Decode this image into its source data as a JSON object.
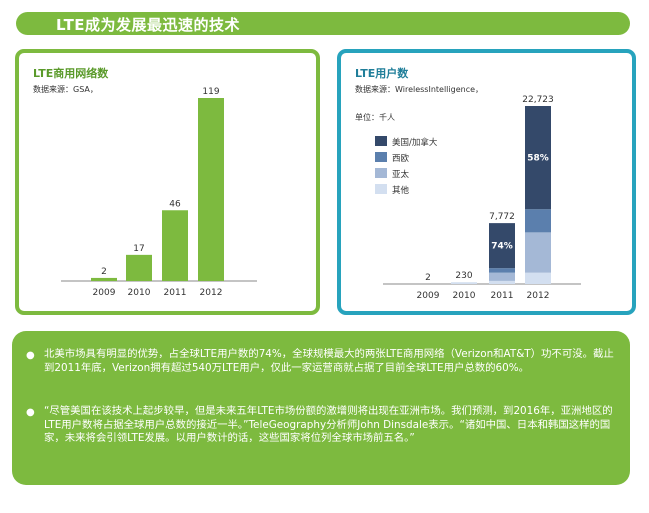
{
  "header": {
    "title": "LTE成为发展最迅速的技术"
  },
  "chart_data": [
    {
      "type": "bar",
      "title": "LTE商用网络数",
      "source": "数据来源：GSA，",
      "categories": [
        "2009",
        "2010",
        "2011",
        "2012"
      ],
      "values": [
        2,
        17,
        46,
        119
      ],
      "value_labels": [
        "2",
        "17",
        "46",
        "119"
      ],
      "color": "#7dba3f"
    },
    {
      "type": "bar",
      "stacked": true,
      "title": "LTE用户数",
      "source": "数据来源：WirelessIntelligence，",
      "unit": "单位：千人",
      "categories": [
        "2009",
        "2010",
        "2011",
        "2012"
      ],
      "totals": [
        2,
        230,
        7772,
        22723
      ],
      "total_labels": [
        "2",
        "230",
        "7,772",
        "22,723"
      ],
      "series": [
        {
          "name": "美国/加拿大",
          "color": "#34496a",
          "values": [
            0,
            0,
            5751,
            13179
          ]
        },
        {
          "name": "西欧",
          "color": "#5b7fad",
          "values": [
            0,
            0,
            575,
            2954
          ]
        },
        {
          "name": "亚太",
          "color": "#a4b8d6",
          "values": [
            0,
            0,
            1049,
            5145
          ]
        },
        {
          "name": "其他",
          "color": "#d3dff0",
          "values": [
            2,
            230,
            397,
            1445
          ]
        }
      ],
      "annotations": [
        {
          "category": "2011",
          "text": "74%"
        },
        {
          "category": "2012",
          "text": "58%"
        }
      ],
      "legend_position": "top-left"
    }
  ],
  "bullets": [
    "北美市场具有明显的优势，占全球LTE用户数的74%，全球规模最大的两张LTE商用网络（Verizon和AT&T）功不可没。截止到2011年底，Verizon拥有超过540万LTE用户，仅此一家运营商就占据了目前全球LTE用户总数的60%。",
    "“尽管美国在该技术上起步较早，但是未来五年LTE市场份额的激增则将出现在亚洲市场。我们预测，到2016年，亚洲地区的LTE用户数将占据全球用户总数的接近一半。”TeleGeography分析师John Dinsdale表示。“诸如中国、日本和韩国这样的国家，未来将会引领LTE发展。以用户数计的话，这些国家将位列全球市场前五名。”"
  ],
  "bullet_symbol": "●"
}
